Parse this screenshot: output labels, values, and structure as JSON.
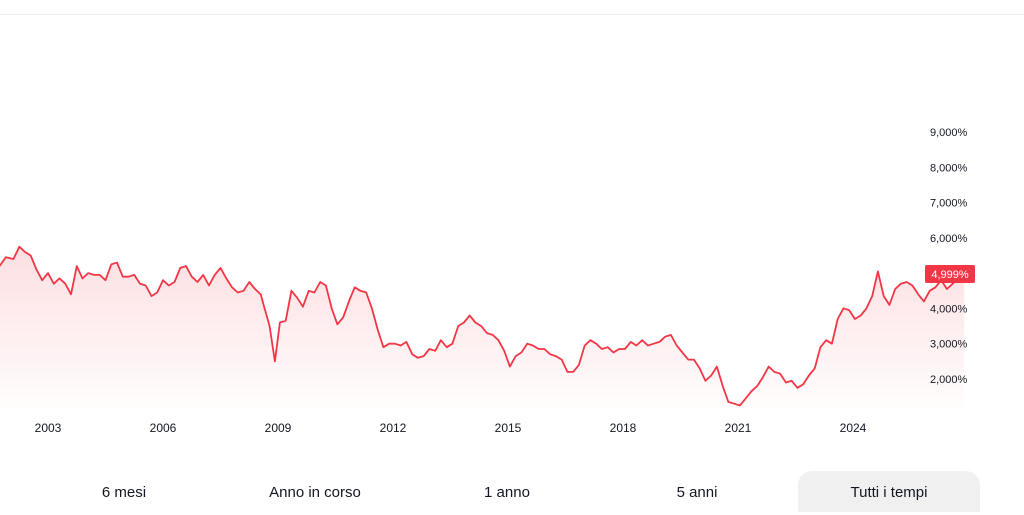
{
  "chart_data": {
    "type": "area",
    "x_unit": "year",
    "ylim": [
      1.0,
      9.5
    ],
    "y_ticks": [
      {
        "value": 9.0,
        "label": "9,000%"
      },
      {
        "value": 8.0,
        "label": "8,000%"
      },
      {
        "value": 7.0,
        "label": "7,000%"
      },
      {
        "value": 6.0,
        "label": "6,000%"
      },
      {
        "value": 4.0,
        "label": "4,000%"
      },
      {
        "value": 3.0,
        "label": "3,000%"
      },
      {
        "value": 2.0,
        "label": "2,000%"
      }
    ],
    "x_ticks": [
      {
        "value": 2003,
        "label": "2003"
      },
      {
        "value": 2006,
        "label": "2006"
      },
      {
        "value": 2009,
        "label": "2009"
      },
      {
        "value": 2012,
        "label": "2012"
      },
      {
        "value": 2015,
        "label": "2015"
      },
      {
        "value": 2018,
        "label": "2018"
      },
      {
        "value": 2021,
        "label": "2021"
      },
      {
        "value": 2024,
        "label": "2024"
      }
    ],
    "last_value_label": "4,999%",
    "last_value": 4.999,
    "line_color": "#f23645",
    "series": [
      {
        "points": [
          [
            2001.7,
            5.15
          ],
          [
            2001.9,
            5.45
          ],
          [
            2002.1,
            5.4
          ],
          [
            2002.25,
            5.75
          ],
          [
            2002.4,
            5.6
          ],
          [
            2002.55,
            5.5
          ],
          [
            2002.7,
            5.1
          ],
          [
            2002.85,
            4.8
          ],
          [
            2003.0,
            5.0
          ],
          [
            2003.15,
            4.7
          ],
          [
            2003.3,
            4.85
          ],
          [
            2003.45,
            4.7
          ],
          [
            2003.6,
            4.4
          ],
          [
            2003.75,
            5.2
          ],
          [
            2003.9,
            4.85
          ],
          [
            2004.05,
            5.0
          ],
          [
            2004.2,
            4.95
          ],
          [
            2004.35,
            4.95
          ],
          [
            2004.5,
            4.8
          ],
          [
            2004.65,
            5.25
          ],
          [
            2004.8,
            5.3
          ],
          [
            2004.95,
            4.9
          ],
          [
            2005.1,
            4.9
          ],
          [
            2005.25,
            4.95
          ],
          [
            2005.4,
            4.7
          ],
          [
            2005.55,
            4.65
          ],
          [
            2005.7,
            4.35
          ],
          [
            2005.85,
            4.45
          ],
          [
            2006.0,
            4.8
          ],
          [
            2006.15,
            4.65
          ],
          [
            2006.3,
            4.75
          ],
          [
            2006.45,
            5.15
          ],
          [
            2006.6,
            5.2
          ],
          [
            2006.75,
            4.9
          ],
          [
            2006.9,
            4.75
          ],
          [
            2007.05,
            4.95
          ],
          [
            2007.2,
            4.65
          ],
          [
            2007.35,
            4.95
          ],
          [
            2007.5,
            5.15
          ],
          [
            2007.65,
            4.85
          ],
          [
            2007.8,
            4.6
          ],
          [
            2007.95,
            4.45
          ],
          [
            2008.1,
            4.5
          ],
          [
            2008.25,
            4.75
          ],
          [
            2008.4,
            4.55
          ],
          [
            2008.55,
            4.4
          ],
          [
            2008.65,
            4.0
          ],
          [
            2008.78,
            3.5
          ],
          [
            2008.92,
            2.5
          ],
          [
            2009.05,
            3.6
          ],
          [
            2009.2,
            3.65
          ],
          [
            2009.35,
            4.5
          ],
          [
            2009.5,
            4.3
          ],
          [
            2009.65,
            4.05
          ],
          [
            2009.8,
            4.5
          ],
          [
            2009.95,
            4.45
          ],
          [
            2010.1,
            4.75
          ],
          [
            2010.25,
            4.65
          ],
          [
            2010.4,
            4.0
          ],
          [
            2010.55,
            3.55
          ],
          [
            2010.7,
            3.75
          ],
          [
            2010.85,
            4.2
          ],
          [
            2011.0,
            4.6
          ],
          [
            2011.15,
            4.5
          ],
          [
            2011.3,
            4.45
          ],
          [
            2011.45,
            4.0
          ],
          [
            2011.6,
            3.4
          ],
          [
            2011.75,
            2.9
          ],
          [
            2011.9,
            3.0
          ],
          [
            2012.05,
            3.0
          ],
          [
            2012.2,
            2.95
          ],
          [
            2012.35,
            3.05
          ],
          [
            2012.5,
            2.7
          ],
          [
            2012.65,
            2.6
          ],
          [
            2012.8,
            2.65
          ],
          [
            2012.95,
            2.85
          ],
          [
            2013.1,
            2.8
          ],
          [
            2013.25,
            3.1
          ],
          [
            2013.4,
            2.9
          ],
          [
            2013.55,
            3.0
          ],
          [
            2013.7,
            3.5
          ],
          [
            2013.85,
            3.6
          ],
          [
            2014.0,
            3.8
          ],
          [
            2014.15,
            3.6
          ],
          [
            2014.3,
            3.5
          ],
          [
            2014.45,
            3.3
          ],
          [
            2014.6,
            3.25
          ],
          [
            2014.75,
            3.1
          ],
          [
            2014.9,
            2.8
          ],
          [
            2015.05,
            2.35
          ],
          [
            2015.2,
            2.65
          ],
          [
            2015.35,
            2.75
          ],
          [
            2015.5,
            3.0
          ],
          [
            2015.65,
            2.95
          ],
          [
            2015.8,
            2.85
          ],
          [
            2015.95,
            2.85
          ],
          [
            2016.1,
            2.7
          ],
          [
            2016.25,
            2.65
          ],
          [
            2016.4,
            2.55
          ],
          [
            2016.55,
            2.2
          ],
          [
            2016.7,
            2.2
          ],
          [
            2016.85,
            2.4
          ],
          [
            2017.0,
            2.95
          ],
          [
            2017.15,
            3.1
          ],
          [
            2017.3,
            3.0
          ],
          [
            2017.45,
            2.85
          ],
          [
            2017.6,
            2.9
          ],
          [
            2017.75,
            2.75
          ],
          [
            2017.9,
            2.85
          ],
          [
            2018.05,
            2.85
          ],
          [
            2018.2,
            3.05
          ],
          [
            2018.35,
            2.95
          ],
          [
            2018.5,
            3.1
          ],
          [
            2018.65,
            2.95
          ],
          [
            2018.8,
            3.0
          ],
          [
            2018.95,
            3.05
          ],
          [
            2019.1,
            3.2
          ],
          [
            2019.25,
            3.25
          ],
          [
            2019.4,
            2.95
          ],
          [
            2019.55,
            2.75
          ],
          [
            2019.7,
            2.55
          ],
          [
            2019.85,
            2.55
          ],
          [
            2020.0,
            2.3
          ],
          [
            2020.15,
            1.95
          ],
          [
            2020.3,
            2.1
          ],
          [
            2020.45,
            2.35
          ],
          [
            2020.6,
            1.8
          ],
          [
            2020.75,
            1.35
          ],
          [
            2020.9,
            1.3
          ],
          [
            2021.05,
            1.25
          ],
          [
            2021.2,
            1.45
          ],
          [
            2021.35,
            1.65
          ],
          [
            2021.5,
            1.8
          ],
          [
            2021.65,
            2.05
          ],
          [
            2021.8,
            2.35
          ],
          [
            2021.95,
            2.2
          ],
          [
            2022.1,
            2.15
          ],
          [
            2022.25,
            1.9
          ],
          [
            2022.4,
            1.95
          ],
          [
            2022.55,
            1.75
          ],
          [
            2022.7,
            1.85
          ],
          [
            2022.85,
            2.1
          ],
          [
            2023.0,
            2.3
          ],
          [
            2023.15,
            2.9
          ],
          [
            2023.3,
            3.1
          ],
          [
            2023.45,
            3.0
          ],
          [
            2023.6,
            3.7
          ],
          [
            2023.75,
            4.0
          ],
          [
            2023.9,
            3.95
          ],
          [
            2024.05,
            3.7
          ],
          [
            2024.2,
            3.8
          ],
          [
            2024.35,
            4.0
          ],
          [
            2024.5,
            4.35
          ],
          [
            2024.65,
            5.05
          ],
          [
            2024.8,
            4.35
          ],
          [
            2024.95,
            4.1
          ],
          [
            2025.1,
            4.55
          ],
          [
            2025.25,
            4.7
          ],
          [
            2025.4,
            4.75
          ],
          [
            2025.55,
            4.65
          ],
          [
            2025.7,
            4.4
          ],
          [
            2025.85,
            4.2
          ],
          [
            2026.0,
            4.5
          ],
          [
            2026.15,
            4.6
          ],
          [
            2026.3,
            4.8
          ],
          [
            2026.45,
            4.55
          ],
          [
            2026.6,
            4.7
          ],
          [
            2026.75,
            4.85
          ],
          [
            2026.9,
            4.999
          ]
        ]
      }
    ]
  },
  "ranges": [
    {
      "label": "6 mesi",
      "active": false
    },
    {
      "label": "Anno in corso",
      "active": false
    },
    {
      "label": "1 anno",
      "active": false
    },
    {
      "label": "5 anni",
      "active": false
    },
    {
      "label": "Tutti i tempi",
      "active": true
    }
  ]
}
